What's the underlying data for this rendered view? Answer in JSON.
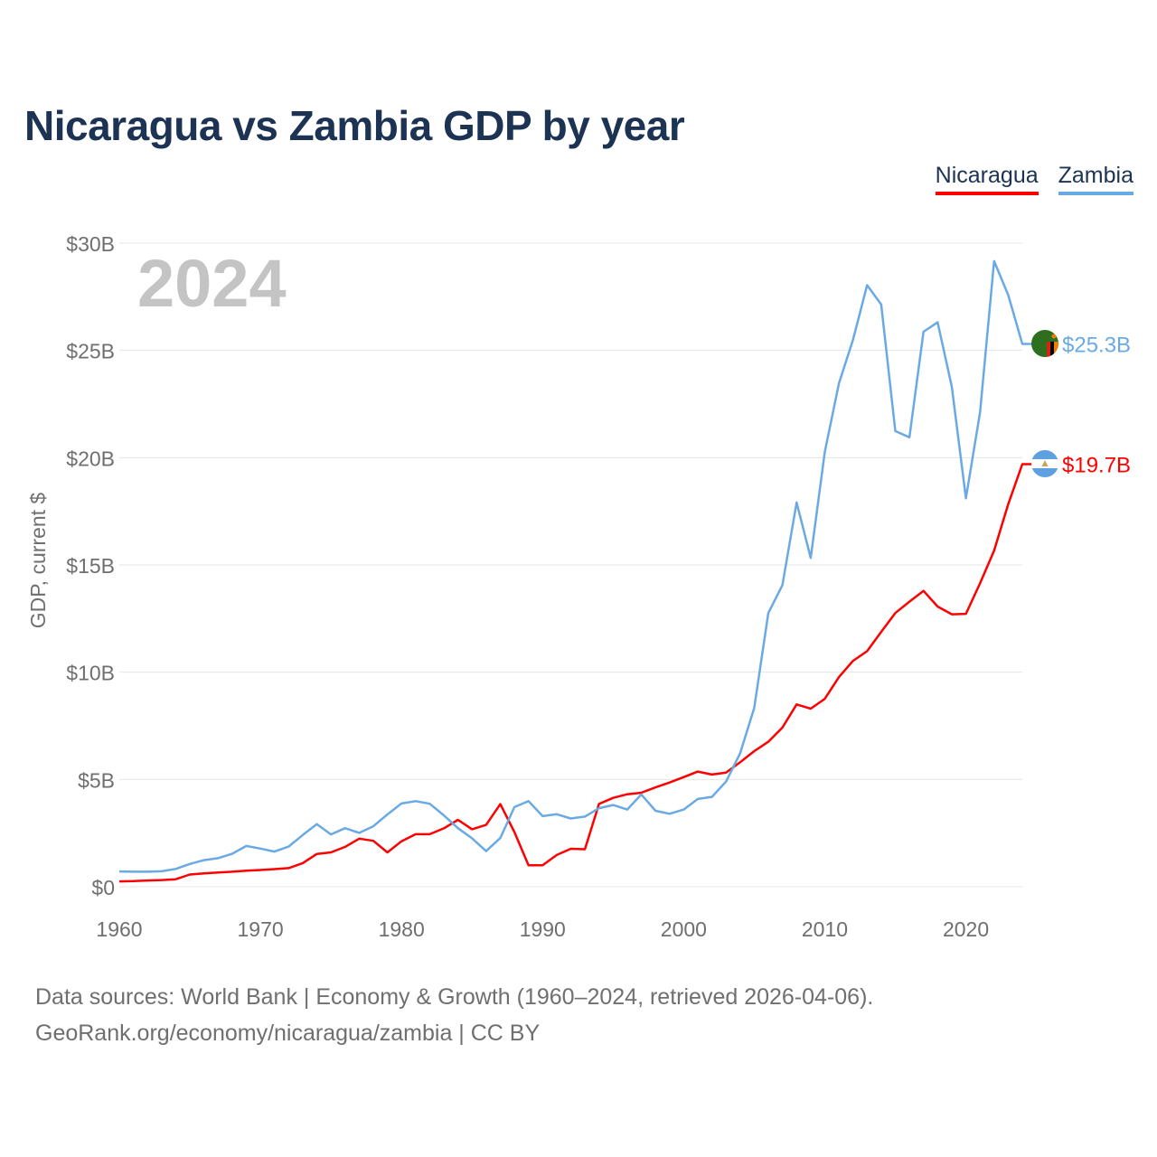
{
  "title": "Nicaragua vs Zambia GDP by year",
  "legend": {
    "nicaragua": "Nicaragua",
    "zambia": "Zambia"
  },
  "colors": {
    "nicaragua": "#ff0000",
    "zambia": "#6aaae4",
    "title": "#1c3353",
    "year_watermark": "#c4c4c4"
  },
  "footer": {
    "line1": "Data sources: World Bank | Economy & Growth (1960–2024, retrieved 2026-04-06).",
    "line2": "GeoRank.org/economy/nicaragua/zambia | CC BY"
  },
  "chart_data": {
    "type": "line",
    "title": "Nicaragua vs Zambia GDP by year",
    "xlabel": "",
    "ylabel": "GDP, current $",
    "year_label": "2024",
    "xlim": [
      1960,
      2024
    ],
    "ylim": [
      0,
      30
    ],
    "x_ticks": [
      1960,
      1970,
      1980,
      1990,
      2000,
      2010,
      2020
    ],
    "y_ticks": [
      0,
      5,
      10,
      15,
      20,
      25,
      30
    ],
    "y_tick_labels": [
      "$0",
      "$5B",
      "$10B",
      "$15B",
      "$20B",
      "$25B",
      "$30B"
    ],
    "grid": true,
    "legend_position": "top-right",
    "x": [
      1960,
      1961,
      1962,
      1963,
      1964,
      1965,
      1966,
      1967,
      1968,
      1969,
      1970,
      1971,
      1972,
      1973,
      1974,
      1975,
      1976,
      1977,
      1978,
      1979,
      1980,
      1981,
      1982,
      1983,
      1984,
      1985,
      1986,
      1987,
      1988,
      1989,
      1990,
      1991,
      1992,
      1993,
      1994,
      1995,
      1996,
      1997,
      1998,
      1999,
      2000,
      2001,
      2002,
      2003,
      2004,
      2005,
      2006,
      2007,
      2008,
      2009,
      2010,
      2011,
      2012,
      2013,
      2014,
      2015,
      2016,
      2017,
      2018,
      2019,
      2020,
      2021,
      2022,
      2023,
      2024
    ],
    "series": [
      {
        "name": "Nicaragua",
        "color": "#ff0000",
        "end_label": "$19.7B",
        "values": [
          0.25,
          0.26,
          0.29,
          0.31,
          0.35,
          0.57,
          0.62,
          0.66,
          0.7,
          0.75,
          0.78,
          0.82,
          0.87,
          1.1,
          1.53,
          1.6,
          1.86,
          2.24,
          2.14,
          1.6,
          2.12,
          2.45,
          2.45,
          2.72,
          3.12,
          2.68,
          2.88,
          3.85,
          2.55,
          1.0,
          1.0,
          1.48,
          1.77,
          1.75,
          3.86,
          4.14,
          4.31,
          4.38,
          4.63,
          4.86,
          5.11,
          5.37,
          5.23,
          5.32,
          5.8,
          6.32,
          6.76,
          7.42,
          8.5,
          8.3,
          8.76,
          9.77,
          10.53,
          10.98,
          11.88,
          12.76,
          13.29,
          13.79,
          13.06,
          12.7,
          12.72,
          14.14,
          15.67,
          17.83,
          19.7
        ]
      },
      {
        "name": "Zambia",
        "color": "#6aaae4",
        "end_label": "$25.3B",
        "values": [
          0.71,
          0.7,
          0.7,
          0.72,
          0.83,
          1.06,
          1.24,
          1.33,
          1.54,
          1.9,
          1.78,
          1.64,
          1.87,
          2.41,
          2.92,
          2.44,
          2.73,
          2.51,
          2.82,
          3.37,
          3.88,
          3.99,
          3.87,
          3.33,
          2.73,
          2.26,
          1.66,
          2.27,
          3.71,
          3.99,
          3.29,
          3.38,
          3.18,
          3.27,
          3.66,
          3.81,
          3.6,
          4.3,
          3.54,
          3.4,
          3.6,
          4.09,
          4.19,
          4.9,
          6.22,
          8.33,
          12.76,
          14.06,
          17.91,
          15.33,
          20.27,
          23.46,
          25.5,
          28.04,
          27.14,
          21.24,
          20.95,
          25.87,
          26.31,
          23.31,
          18.11,
          22.1,
          29.16,
          27.58,
          25.3
        ]
      }
    ]
  }
}
